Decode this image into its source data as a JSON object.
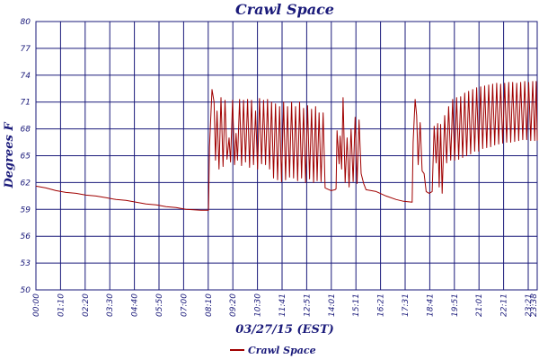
{
  "chart_data": {
    "type": "line",
    "title": "Crawl Space",
    "xlabel": "03/27/15 (EST)",
    "ylabel": "Degrees F",
    "ylim": [
      50,
      80
    ],
    "yticks": [
      "50",
      "53",
      "56",
      "59",
      "62",
      "65",
      "68",
      "71",
      "74",
      "77",
      "80"
    ],
    "xticks": [
      "00:00",
      "01:10",
      "02:20",
      "03:30",
      "04:40",
      "05:50",
      "07:00",
      "08:10",
      "09:20",
      "10:30",
      "11:41",
      "12:51",
      "14:01",
      "15:11",
      "16:21",
      "17:31",
      "18:41",
      "19:51",
      "21:01",
      "22:11",
      "23:21",
      "23:38"
    ],
    "grid": true,
    "legend": "bottom-center",
    "series": [
      {
        "name": "Crawl Space",
        "color": "#a00000",
        "points": [
          [
            0,
            61.6
          ],
          [
            20,
            61.4
          ],
          [
            40,
            61.1
          ],
          [
            60,
            60.9
          ],
          [
            80,
            60.8
          ],
          [
            100,
            60.6
          ],
          [
            120,
            60.5
          ],
          [
            140,
            60.3
          ],
          [
            160,
            60.1
          ],
          [
            180,
            60.0
          ],
          [
            200,
            59.8
          ],
          [
            220,
            59.6
          ],
          [
            240,
            59.5
          ],
          [
            260,
            59.3
          ],
          [
            280,
            59.2
          ],
          [
            300,
            59.0
          ],
          [
            330,
            58.9
          ],
          [
            345,
            58.9
          ],
          [
            347,
            66.0
          ],
          [
            352,
            72.4
          ],
          [
            356,
            71.0
          ],
          [
            359,
            64.5
          ],
          [
            362,
            70.0
          ],
          [
            366,
            63.5
          ],
          [
            370,
            71.5
          ],
          [
            374,
            63.8
          ],
          [
            378,
            71.2
          ],
          [
            382,
            64.6
          ],
          [
            386,
            67.0
          ],
          [
            389,
            64.3
          ],
          [
            393,
            71.2
          ],
          [
            397,
            64.0
          ],
          [
            400,
            67.5
          ],
          [
            403,
            64.5
          ],
          [
            407,
            71.3
          ],
          [
            411,
            63.9
          ],
          [
            415,
            71.2
          ],
          [
            419,
            64.3
          ],
          [
            423,
            71.3
          ],
          [
            427,
            63.7
          ],
          [
            431,
            71.2
          ],
          [
            435,
            64.0
          ],
          [
            439,
            70.0
          ],
          [
            443,
            63.5
          ],
          [
            447,
            71.4
          ],
          [
            451,
            64.1
          ],
          [
            455,
            71.2
          ],
          [
            459,
            64.0
          ],
          [
            463,
            71.3
          ],
          [
            467,
            63.5
          ],
          [
            471,
            71.0
          ],
          [
            475,
            62.5
          ],
          [
            479,
            70.8
          ],
          [
            483,
            62.3
          ],
          [
            487,
            70.5
          ],
          [
            491,
            62.1
          ],
          [
            495,
            71.0
          ],
          [
            499,
            62.3
          ],
          [
            503,
            70.5
          ],
          [
            507,
            62.6
          ],
          [
            511,
            71.0
          ],
          [
            515,
            62.5
          ],
          [
            519,
            70.5
          ],
          [
            523,
            62.2
          ],
          [
            527,
            71.0
          ],
          [
            531,
            62.5
          ],
          [
            535,
            70.3
          ],
          [
            539,
            62.0
          ],
          [
            543,
            70.6
          ],
          [
            547,
            62.4
          ],
          [
            551,
            70.2
          ],
          [
            555,
            62.0
          ],
          [
            559,
            70.5
          ],
          [
            562,
            62.2
          ],
          [
            566,
            69.8
          ],
          [
            570,
            62.1
          ],
          [
            574,
            69.8
          ],
          [
            578,
            61.4
          ],
          [
            590,
            61.1
          ],
          [
            598,
            61.2
          ],
          [
            600,
            61.3
          ],
          [
            602,
            67.8
          ],
          [
            606,
            64.1
          ],
          [
            608,
            67.2
          ],
          [
            611,
            63.5
          ],
          [
            614,
            71.5
          ],
          [
            618,
            62.0
          ],
          [
            622,
            67.0
          ],
          [
            626,
            61.5
          ],
          [
            630,
            68.0
          ],
          [
            634,
            62.1
          ],
          [
            638,
            69.3
          ],
          [
            642,
            61.9
          ],
          [
            646,
            69.0
          ],
          [
            650,
            63.0
          ],
          [
            655,
            61.9
          ],
          [
            660,
            61.2
          ],
          [
            680,
            61.0
          ],
          [
            700,
            60.5
          ],
          [
            720,
            60.1
          ],
          [
            735,
            59.9
          ],
          [
            752,
            59.8
          ],
          [
            754,
            66.5
          ],
          [
            758,
            71.3
          ],
          [
            761,
            69.5
          ],
          [
            764,
            64.0
          ],
          [
            768,
            68.7
          ],
          [
            772,
            63.3
          ],
          [
            776,
            63.0
          ],
          [
            780,
            61.0
          ],
          [
            786,
            60.8
          ],
          [
            792,
            61.0
          ],
          [
            796,
            68.3
          ],
          [
            800,
            64.2
          ],
          [
            803,
            68.6
          ],
          [
            806,
            61.5
          ],
          [
            809,
            68.5
          ],
          [
            812,
            60.8
          ],
          [
            817,
            69.5
          ],
          [
            821,
            64.2
          ],
          [
            825,
            70.5
          ],
          [
            829,
            64.5
          ],
          [
            833,
            71.3
          ],
          [
            837,
            64.5
          ],
          [
            841,
            71.5
          ],
          [
            845,
            64.6
          ],
          [
            849,
            71.6
          ],
          [
            853,
            64.8
          ],
          [
            857,
            72.0
          ],
          [
            861,
            65.0
          ],
          [
            865,
            72.2
          ],
          [
            869,
            65.2
          ],
          [
            873,
            72.4
          ],
          [
            877,
            65.5
          ],
          [
            881,
            72.6
          ],
          [
            885,
            65.5
          ],
          [
            889,
            72.7
          ],
          [
            893,
            65.8
          ],
          [
            897,
            72.8
          ],
          [
            901,
            65.9
          ],
          [
            905,
            72.9
          ],
          [
            909,
            66.0
          ],
          [
            913,
            73.0
          ],
          [
            917,
            66.2
          ],
          [
            921,
            73.1
          ],
          [
            925,
            66.3
          ],
          [
            929,
            73.0
          ],
          [
            933,
            66.4
          ],
          [
            937,
            73.1
          ],
          [
            941,
            66.5
          ],
          [
            945,
            73.2
          ],
          [
            949,
            66.5
          ],
          [
            953,
            73.2
          ],
          [
            957,
            66.6
          ],
          [
            961,
            73.1
          ],
          [
            965,
            66.7
          ],
          [
            969,
            73.2
          ],
          [
            973,
            66.8
          ],
          [
            977,
            73.3
          ],
          [
            981,
            66.8
          ],
          [
            985,
            73.2
          ],
          [
            989,
            66.7
          ],
          [
            993,
            73.3
          ],
          [
            997,
            66.7
          ],
          [
            1000,
            73.3
          ],
          [
            1002,
            66.7
          ]
        ]
      }
    ]
  }
}
